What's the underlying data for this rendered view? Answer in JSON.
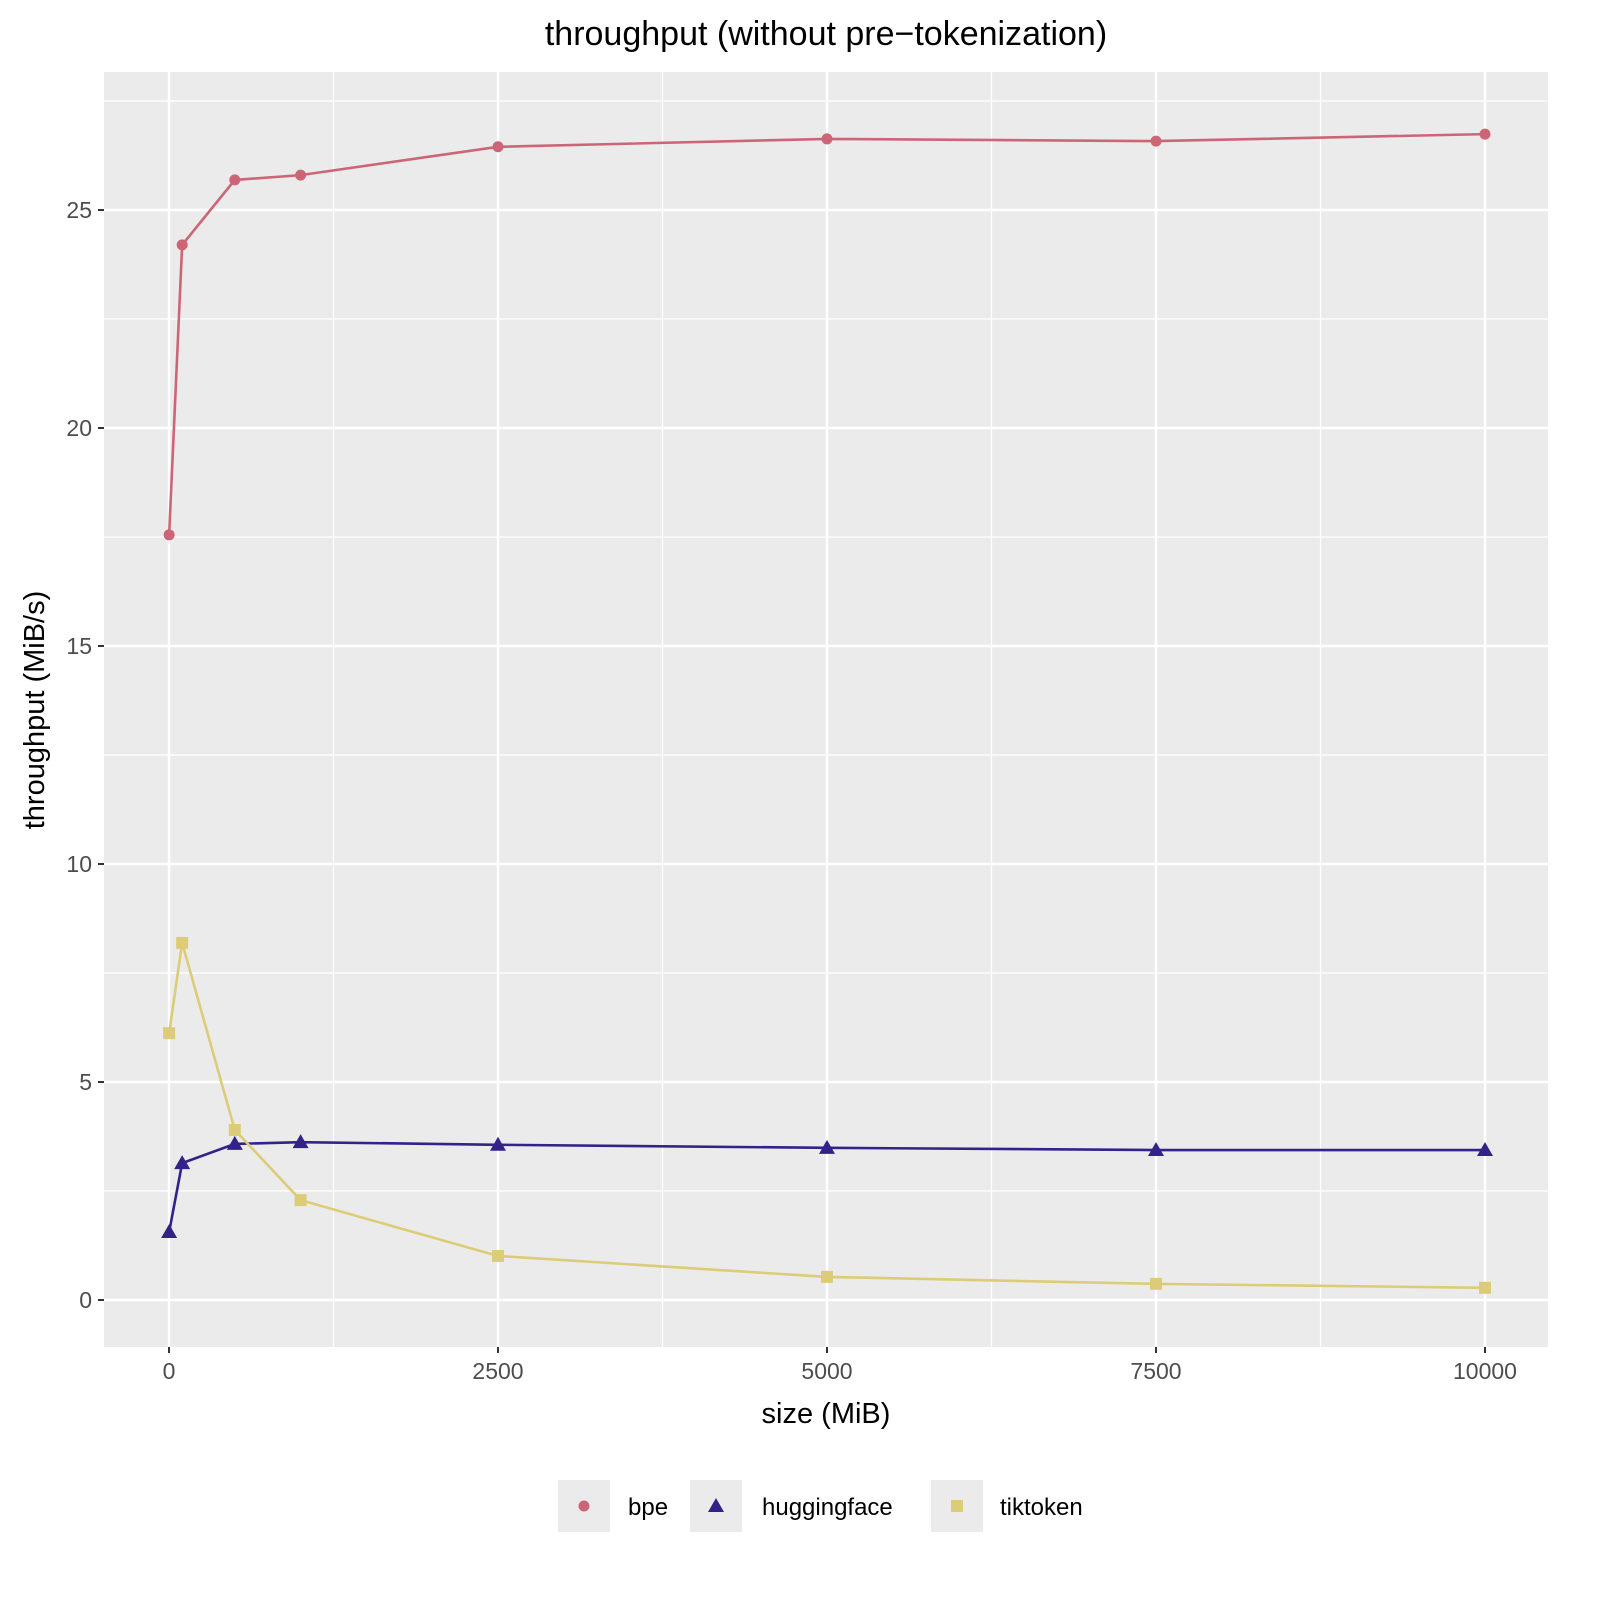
{
  "chart_data": {
    "type": "line",
    "title": "throughput (without pre−tokenization)",
    "xlabel": "size (MiB)",
    "ylabel": "throughput (MiB/s)",
    "xlim": [
      -500,
      10500
    ],
    "ylim": [
      -1.1,
      28.2
    ],
    "x_ticks": [
      0,
      2500,
      5000,
      7500,
      10000
    ],
    "x_tick_labels": [
      "0",
      "2500",
      "5000",
      "7500",
      "10000"
    ],
    "y_ticks": [
      0,
      5,
      10,
      15,
      20,
      25
    ],
    "y_tick_labels": [
      "0",
      "5",
      "10",
      "15",
      "20",
      "25"
    ],
    "grid": true,
    "legend_position": "bottom",
    "x": [
      1,
      100,
      500,
      1000,
      2500,
      5000,
      7500,
      10000
    ],
    "series": [
      {
        "name": "bpe",
        "color": "#cc6677",
        "marker": "circle",
        "values": [
          17.55,
          24.2,
          25.69,
          25.8,
          26.45,
          26.63,
          26.58,
          26.74
        ]
      },
      {
        "name": "huggingface",
        "color": "#332288",
        "marker": "triangle",
        "values": [
          1.56,
          3.14,
          3.58,
          3.62,
          3.56,
          3.49,
          3.44,
          3.44
        ]
      },
      {
        "name": "tiktoken",
        "color": "#ddcc77",
        "marker": "square",
        "values": [
          6.12,
          8.19,
          3.9,
          2.29,
          1.01,
          0.53,
          0.37,
          0.28
        ]
      }
    ]
  }
}
